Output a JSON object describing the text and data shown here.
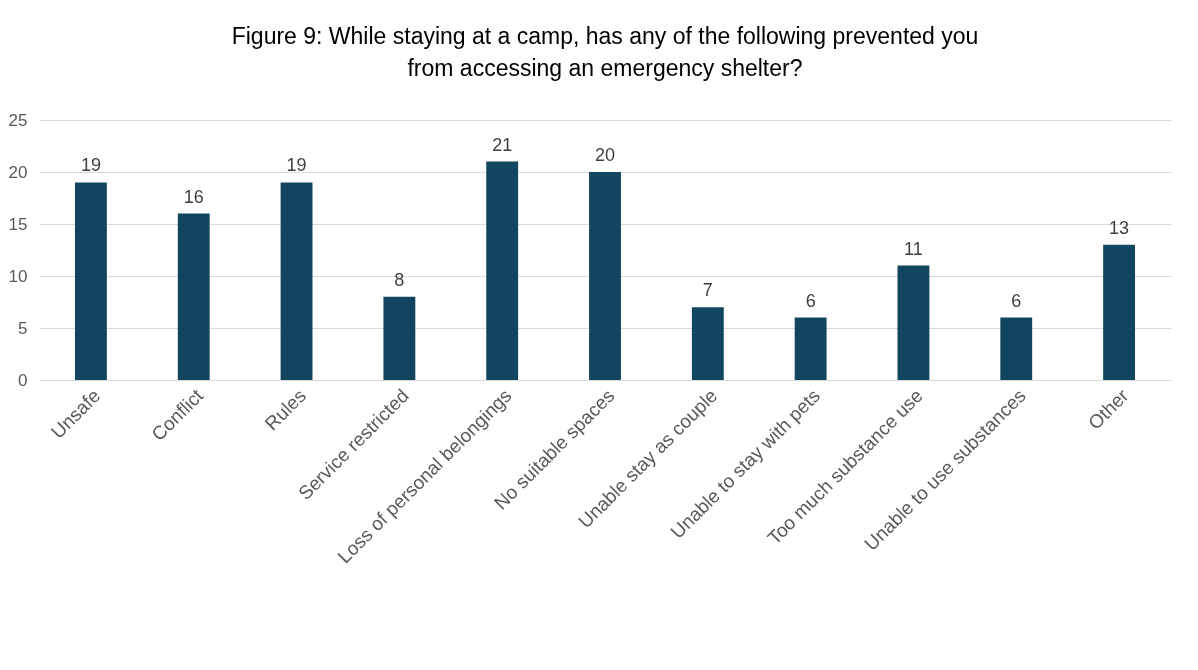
{
  "chart_data": {
    "type": "bar",
    "title": "Figure 9: While staying at a camp, has any of the following prevented you from accessing an emergency shelter?",
    "categories": [
      "Unsafe",
      "Conflict",
      "Rules",
      "Service restricted",
      "Loss of personal belongings",
      "No suitable spaces",
      "Unable stay as couple",
      "Unable to stay with pets",
      "Too much substance use",
      "Unable to use substances",
      "Other"
    ],
    "values": [
      19,
      16,
      19,
      8,
      21,
      20,
      7,
      6,
      11,
      6,
      13
    ],
    "color": "#124660",
    "ylim": [
      0,
      25
    ],
    "yticks": [
      0,
      5,
      10,
      15,
      20,
      25
    ],
    "grid": "y",
    "data_labels": true
  }
}
